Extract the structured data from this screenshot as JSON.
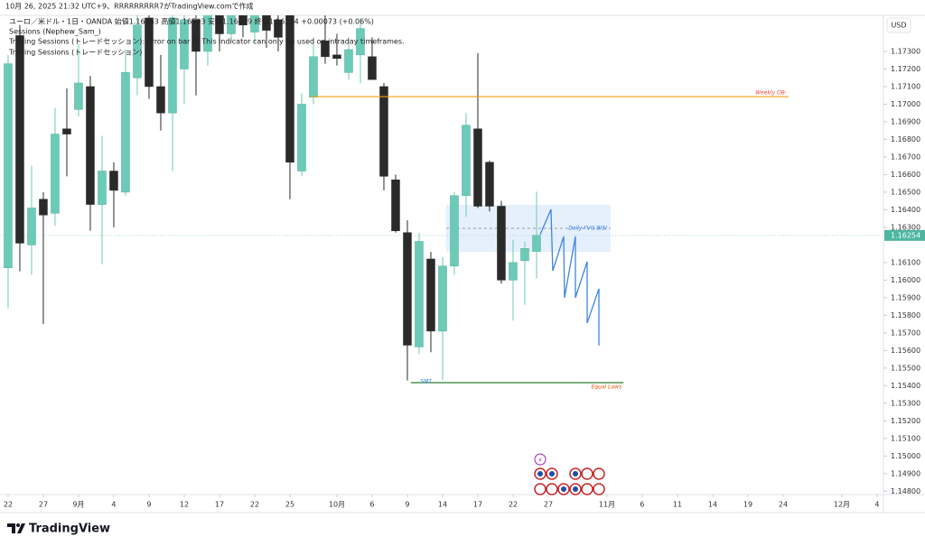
{
  "header": {
    "created": "10月 26, 2025 21:32 UTC+9、RRRRRRRRR7がTradingView.comで作成",
    "symbol_line": "ユーロ／米ドル・1日・OANDA  始値1.16163  高値1.16503  安値1.16009  終値1.16254  +0.00073 (+0.06%)",
    "indicators": [
      "Sessions (Nephew_Sam_)",
      "Trading Sessions (トレードセッション): Error on bar 0: This indicator can only be used on intraday timeframes.",
      "Trading Sessions (トレードセッション)"
    ]
  },
  "currency": "USD",
  "logo": "TradingView",
  "chart_data": {
    "type": "candlestick",
    "up_color": "#6ccbb6",
    "down_color": "#2a2a2a",
    "open": [
      1.1607,
      1.1739,
      1.162,
      1.1646,
      1.1638,
      1.1686,
      1.1697,
      1.171,
      1.1643,
      1.1662,
      1.165,
      1.1715,
      1.1749,
      1.171,
      1.1695,
      1.172,
      1.1748,
      1.173,
      1.1752,
      1.174,
      1.1755,
      1.1741,
      1.1758,
      1.1748,
      1.1755,
      1.1662,
      1.1704,
      1.1736,
      1.1728,
      1.1718,
      1.1728,
      1.1727,
      1.171,
      1.1657,
      1.1627,
      1.1562,
      1.1612,
      1.1571,
      1.1608,
      1.1648,
      1.1686,
      1.1667,
      1.1642,
      1.16,
      1.1611,
      1.16163
    ],
    "high": [
      1.1728,
      1.1745,
      1.1665,
      1.165,
      1.1698,
      1.1709,
      1.1734,
      1.1716,
      1.1682,
      1.1667,
      1.1731,
      1.1752,
      1.1755,
      1.1728,
      1.1756,
      1.176,
      1.1758,
      1.1765,
      1.1768,
      1.177,
      1.1765,
      1.177,
      1.1768,
      1.1758,
      1.176,
      1.1706,
      1.1738,
      1.1752,
      1.174,
      1.1738,
      1.1749,
      1.1738,
      1.1712,
      1.166,
      1.1634,
      1.1627,
      1.1616,
      1.1613,
      1.165,
      1.1695,
      1.1729,
      1.1668,
      1.1645,
      1.1623,
      1.1622,
      1.16503
    ],
    "low": [
      1.1584,
      1.1605,
      1.1603,
      1.1575,
      1.1631,
      1.1659,
      1.1693,
      1.1628,
      1.1609,
      1.163,
      1.1648,
      1.1705,
      1.1703,
      1.1685,
      1.1662,
      1.17,
      1.1705,
      1.1722,
      1.173,
      1.1735,
      1.1738,
      1.1735,
      1.1732,
      1.173,
      1.1646,
      1.1659,
      1.17,
      1.1723,
      1.1722,
      1.1714,
      1.1712,
      1.1714,
      1.1651,
      1.1627,
      1.1543,
      1.1558,
      1.1559,
      1.1543,
      1.1603,
      1.1636,
      1.1641,
      1.1639,
      1.1598,
      1.1577,
      1.1586,
      1.16009
    ],
    "close": [
      1.1723,
      1.1621,
      1.1641,
      1.1637,
      1.1683,
      1.1683,
      1.1712,
      1.1643,
      1.1662,
      1.1651,
      1.1718,
      1.1745,
      1.171,
      1.1695,
      1.1749,
      1.1748,
      1.173,
      1.1752,
      1.174,
      1.1755,
      1.1745,
      1.1755,
      1.1742,
      1.1738,
      1.1667,
      1.17,
      1.1727,
      1.1727,
      1.1726,
      1.1731,
      1.1743,
      1.1714,
      1.1659,
      1.1628,
      1.1563,
      1.1622,
      1.1571,
      1.1608,
      1.1648,
      1.1688,
      1.1642,
      1.1642,
      1.16,
      1.161,
      1.1618,
      1.16254
    ],
    "last_price": 1.16254,
    "last_price_color": "#4db6a0",
    "xlim": [
      -0.69,
      74.54
    ],
    "ylim": [
      1.14781,
      1.17505
    ],
    "xticks": [
      {
        "value": 0,
        "label": "22"
      },
      {
        "value": 3,
        "label": "27"
      },
      {
        "value": 6,
        "label": "9月"
      },
      {
        "value": 9,
        "label": "4"
      },
      {
        "value": 12,
        "label": "9"
      },
      {
        "value": 15,
        "label": "12"
      },
      {
        "value": 18,
        "label": "17"
      },
      {
        "value": 21,
        "label": "22"
      },
      {
        "value": 24,
        "label": "25"
      },
      {
        "value": 28,
        "label": "10月"
      },
      {
        "value": 31,
        "label": "6"
      },
      {
        "value": 34,
        "label": "9"
      },
      {
        "value": 37,
        "label": "14"
      },
      {
        "value": 40,
        "label": "17"
      },
      {
        "value": 43,
        "label": "22"
      },
      {
        "value": 46,
        "label": "27"
      },
      {
        "value": 51,
        "label": "11月"
      },
      {
        "value": 54,
        "label": "6"
      },
      {
        "value": 57,
        "label": "11"
      },
      {
        "value": 60,
        "label": "14"
      },
      {
        "value": 63,
        "label": "19"
      },
      {
        "value": 66,
        "label": "24"
      },
      {
        "value": 71,
        "label": "12月"
      },
      {
        "value": 74,
        "label": "4"
      }
    ],
    "yticks": [
      {
        "value": 1.148,
        "label": "1.14800"
      },
      {
        "value": 1.149,
        "label": "1.14900"
      },
      {
        "value": 1.15,
        "label": "1.15000"
      },
      {
        "value": 1.151,
        "label": "1.15100"
      },
      {
        "value": 1.152,
        "label": "1.15200"
      },
      {
        "value": 1.153,
        "label": "1.15300"
      },
      {
        "value": 1.154,
        "label": "1.15400"
      },
      {
        "value": 1.155,
        "label": "1.15500"
      },
      {
        "value": 1.156,
        "label": "1.15600"
      },
      {
        "value": 1.157,
        "label": "1.15700"
      },
      {
        "value": 1.158,
        "label": "1.15800"
      },
      {
        "value": 1.159,
        "label": "1.15900"
      },
      {
        "value": 1.16,
        "label": "1.16000"
      },
      {
        "value": 1.161,
        "label": "1.16100"
      },
      {
        "value": 1.163,
        "label": "1.16300"
      },
      {
        "value": 1.164,
        "label": "1.16400"
      },
      {
        "value": 1.165,
        "label": "1.16500"
      },
      {
        "value": 1.166,
        "label": "1.16600"
      },
      {
        "value": 1.167,
        "label": "1.16700"
      },
      {
        "value": 1.168,
        "label": "1.16800"
      },
      {
        "value": 1.169,
        "label": "1.16900"
      },
      {
        "value": 1.17,
        "label": "1.17000"
      },
      {
        "value": 1.171,
        "label": "1.17100"
      },
      {
        "value": 1.172,
        "label": "1.17200"
      },
      {
        "value": 1.173,
        "label": "1.17300"
      }
    ],
    "grid": false,
    "zones": [
      {
        "text": "Daily FVG BISI",
        "x0": 37.3,
        "x1": 51.3,
        "top": 1.16428,
        "bottom": 1.16161,
        "color": "#2f80ed"
      }
    ],
    "hlines": [
      {
        "text": "Weekly OB-",
        "value": 1.17043,
        "x0": 25.85,
        "x1": 66.46,
        "color": "#f39c12",
        "text_color": "#e74c3c"
      },
      {
        "text": "Equal Lows",
        "value": 1.15417,
        "x0": 34.3,
        "x1": 52.4,
        "color": "#2e7d32",
        "text_color": "#e65100"
      }
    ],
    "labels": [
      {
        "text": "SMT",
        "x": 35.6,
        "value": 1.15417,
        "color": "#2f80ed"
      }
    ],
    "projection": {
      "color": "#3d85e0",
      "x": [
        45.31,
        46.23,
        46.38,
        47.31,
        47.38,
        48.31,
        48.31,
        49.31,
        49.31,
        50.31,
        50.31
      ],
      "values": [
        1.16259,
        1.16402,
        1.16053,
        1.16248,
        1.159,
        1.16248,
        1.159,
        1.16105,
        1.15756,
        1.15951,
        1.15628
      ]
    }
  }
}
